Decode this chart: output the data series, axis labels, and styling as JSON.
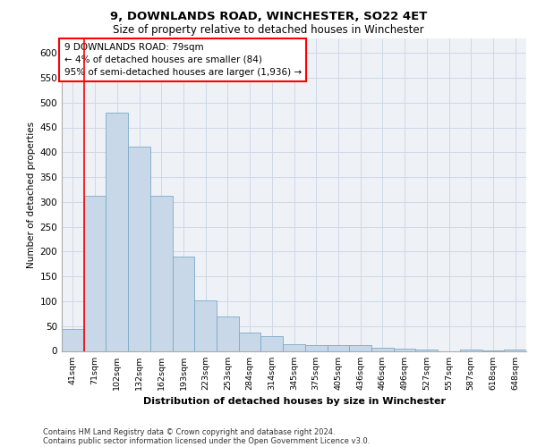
{
  "title1": "9, DOWNLANDS ROAD, WINCHESTER, SO22 4ET",
  "title2": "Size of property relative to detached houses in Winchester",
  "xlabel": "Distribution of detached houses by size in Winchester",
  "ylabel": "Number of detached properties",
  "annotation_line1": "9 DOWNLANDS ROAD: 79sqm",
  "annotation_line2": "← 4% of detached houses are smaller (84)",
  "annotation_line3": "95% of semi-detached houses are larger (1,936) →",
  "footer1": "Contains HM Land Registry data © Crown copyright and database right 2024.",
  "footer2": "Contains public sector information licensed under the Open Government Licence v3.0.",
  "bin_labels": [
    "41sqm",
    "71sqm",
    "102sqm",
    "132sqm",
    "162sqm",
    "193sqm",
    "223sqm",
    "253sqm",
    "284sqm",
    "314sqm",
    "345sqm",
    "375sqm",
    "405sqm",
    "436sqm",
    "466sqm",
    "496sqm",
    "527sqm",
    "557sqm",
    "587sqm",
    "618sqm",
    "648sqm"
  ],
  "bar_values": [
    45,
    312,
    480,
    412,
    312,
    190,
    102,
    69,
    37,
    30,
    13,
    11,
    12,
    11,
    7,
    4,
    2,
    0,
    3,
    1,
    3
  ],
  "bar_color": "#c8d8e8",
  "bar_edge_color": "#7aaac8",
  "vline_color": "red",
  "annotation_box_color": "red",
  "annotation_bg_color": "white",
  "ylim": [
    0,
    630
  ],
  "yticks": [
    0,
    50,
    100,
    150,
    200,
    250,
    300,
    350,
    400,
    450,
    500,
    550,
    600
  ],
  "grid_color": "#d0d8e8",
  "bg_color": "#eef2f7"
}
